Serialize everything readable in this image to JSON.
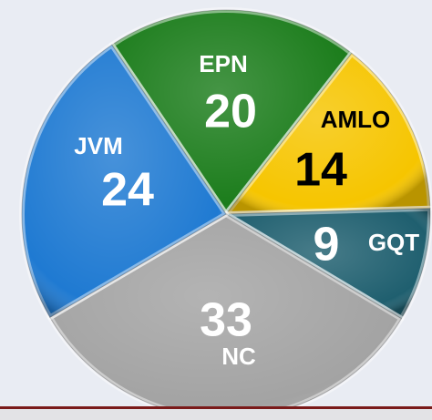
{
  "chart_data": {
    "type": "pie",
    "categories": [
      "EPN",
      "AMLO",
      "GQT",
      "NC",
      "JVM"
    ],
    "values": [
      20,
      14,
      9,
      33,
      24
    ],
    "colors": [
      "#1c7d1c",
      "#f6c500",
      "#1f5f6f",
      "#a3a3a3",
      "#1f7ad2"
    ]
  }
}
